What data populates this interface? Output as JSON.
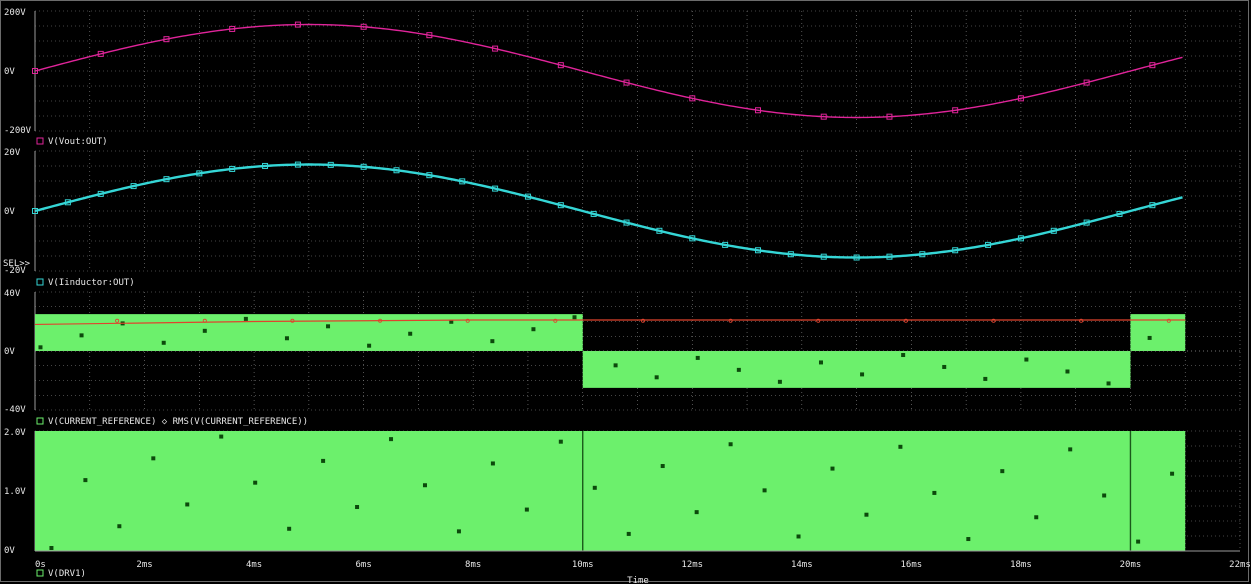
{
  "colors": {
    "background": "#000000",
    "grid": "#8a8a8a",
    "tick_text": "#e8e8e8",
    "vout": "#e0249a",
    "vinductor": "#35d6d6",
    "current_ref": "#6cf06c",
    "rms": "#e0432e",
    "drv1": "#6cf06c"
  },
  "x_axis": {
    "label": "Time",
    "ticks": [
      "0s",
      "2ms",
      "4ms",
      "6ms",
      "8ms",
      "10ms",
      "12ms",
      "14ms",
      "16ms",
      "18ms",
      "20ms",
      "22ms"
    ],
    "range_ms": [
      0,
      22
    ]
  },
  "sel_marker": "SEL>>",
  "chart_data": [
    {
      "type": "line",
      "panel": "vout",
      "yticks": [
        "200V",
        "0V",
        "-200V"
      ],
      "ylim": [
        -200,
        200
      ],
      "legend": "V(Vout:OUT)",
      "series": [
        {
          "name": "V(Vout:OUT)",
          "shape": "sine",
          "amplitude": 155,
          "period_ms": 20,
          "x_end_ms": 21
        }
      ]
    },
    {
      "type": "line",
      "panel": "vinductor",
      "yticks": [
        "20V",
        "0V",
        "-20V"
      ],
      "ylim": [
        -20,
        20
      ],
      "legend": "V(Iinductor:OUT)",
      "series": [
        {
          "name": "V(Iinductor:OUT)",
          "shape": "sine",
          "amplitude": 15.5,
          "period_ms": 20,
          "x_end_ms": 21
        }
      ]
    },
    {
      "type": "area",
      "panel": "current_reference",
      "yticks": [
        "40V",
        "0V",
        "-40V"
      ],
      "ylim": [
        -40,
        40
      ],
      "legend": "V(CURRENT_REFERENCE) ◇ RMS(V(CURRENT_REFERENCE))",
      "series": [
        {
          "name": "V(CURRENT_REFERENCE)",
          "segments": [
            {
              "x": [
                0,
                10
              ],
              "y": 25
            },
            {
              "x": [
                10,
                20
              ],
              "y": -25
            },
            {
              "x": [
                20,
                21
              ],
              "y": 25
            }
          ]
        },
        {
          "name": "RMS(V(CURRENT_REFERENCE))",
          "x": [
            0,
            2,
            4,
            6,
            8,
            10,
            21
          ],
          "y": [
            18,
            19,
            20,
            20.5,
            21,
            21,
            21
          ]
        }
      ]
    },
    {
      "type": "area",
      "panel": "drv1",
      "yticks": [
        "2.0V",
        "1.0V",
        "0V"
      ],
      "ylim": [
        0,
        2.0
      ],
      "legend": "V(DRV1)",
      "series": [
        {
          "name": "V(DRV1)",
          "x": [
            0,
            21
          ],
          "y": 2.0
        }
      ]
    }
  ]
}
